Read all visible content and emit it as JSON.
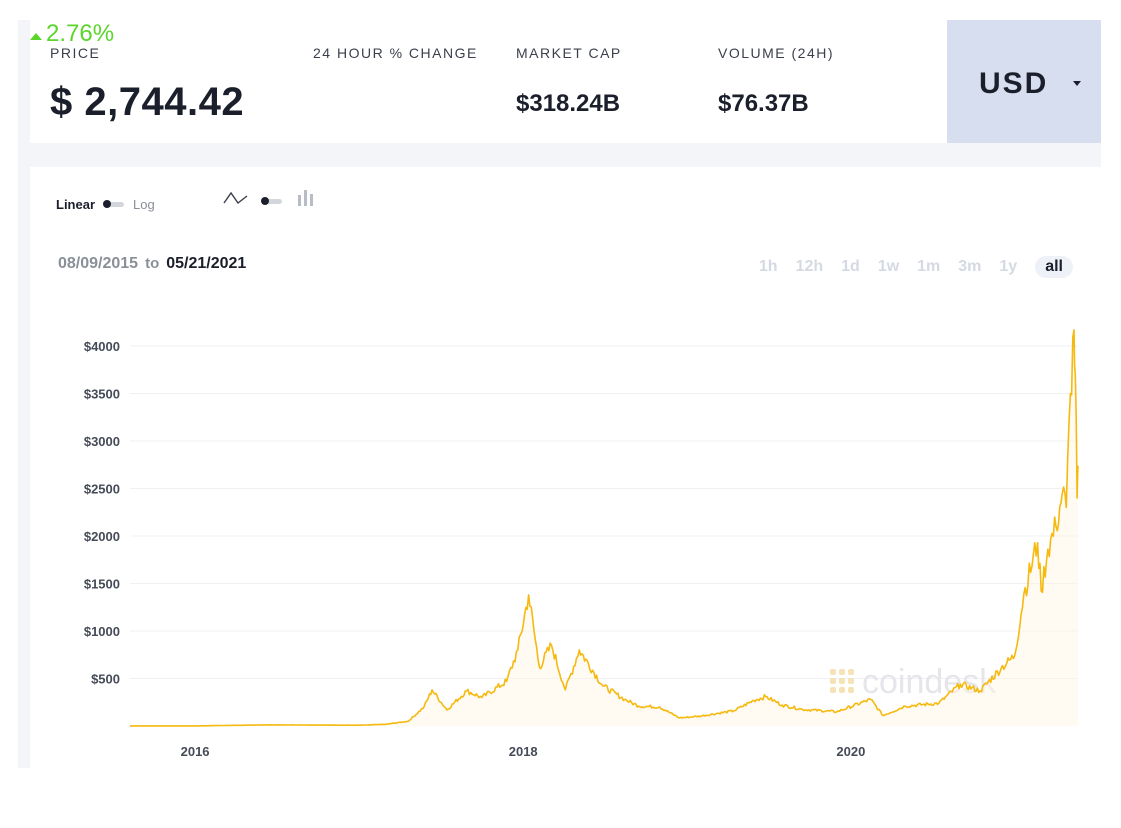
{
  "stats": {
    "price": {
      "label": "PRICE",
      "value": "$ 2,744.42"
    },
    "change": {
      "label": "24 HOUR % CHANGE",
      "value": "2.76%",
      "direction": "up"
    },
    "market_cap": {
      "label": "MARKET CAP",
      "value": "$318.24B"
    },
    "volume": {
      "label": "VOLUME (24H)",
      "value": "$76.37B"
    }
  },
  "currency": {
    "label": "USD",
    "icon": "caret-down-icon"
  },
  "scale_toggle": {
    "linear_label": "Linear",
    "log_label": "Log",
    "selected": "Linear"
  },
  "chart_type_toggle": {
    "line_icon": "line-chart-icon",
    "bar_icon": "candlestick-icon",
    "selected": "line"
  },
  "date_range": {
    "from": "08/09/2015",
    "to_word": "to",
    "to": "05/21/2021"
  },
  "periods": {
    "items": [
      "1h",
      "12h",
      "1d",
      "1w",
      "1m",
      "3m",
      "1y",
      "all"
    ],
    "active": "all"
  },
  "watermark": {
    "text": "coindesk"
  },
  "colors": {
    "line": "#f5b90f",
    "change_up": "#5ad62a",
    "currency_bg": "#d7deef",
    "text_dark": "#1b1f2b"
  },
  "chart_data": {
    "type": "line",
    "title": "",
    "xlabel": "",
    "ylabel": "",
    "x_ticks": [
      "2016",
      "2018",
      "2020"
    ],
    "y_ticks": [
      "$500",
      "$1000",
      "$1500",
      "$2000",
      "$2500",
      "$3000",
      "$3500",
      "$4000"
    ],
    "ylim": [
      0,
      4000
    ],
    "grid": "horizontal",
    "legend": "none",
    "series": [
      {
        "points": [
          [
            "2015-08-09",
            1
          ],
          [
            "2015-12-31",
            1
          ],
          [
            "2016-06-15",
            12
          ],
          [
            "2016-12-31",
            8
          ],
          [
            "2017-03-01",
            18
          ],
          [
            "2017-04-20",
            50
          ],
          [
            "2017-05-25",
            200
          ],
          [
            "2017-06-12",
            380
          ],
          [
            "2017-07-15",
            170
          ],
          [
            "2017-08-28",
            370
          ],
          [
            "2017-10-01",
            300
          ],
          [
            "2017-11-25",
            470
          ],
          [
            "2017-12-20",
            800
          ],
          [
            "2018-01-13",
            1380
          ],
          [
            "2018-02-06",
            620
          ],
          [
            "2018-03-05",
            850
          ],
          [
            "2018-04-05",
            380
          ],
          [
            "2018-05-06",
            800
          ],
          [
            "2018-06-28",
            420
          ],
          [
            "2018-08-15",
            280
          ],
          [
            "2018-09-15",
            210
          ],
          [
            "2018-11-01",
            200
          ],
          [
            "2018-12-15",
            85
          ],
          [
            "2019-02-01",
            105
          ],
          [
            "2019-04-15",
            160
          ],
          [
            "2019-05-30",
            270
          ],
          [
            "2019-06-25",
            310
          ],
          [
            "2019-08-01",
            220
          ],
          [
            "2019-09-15",
            175
          ],
          [
            "2019-12-01",
            150
          ],
          [
            "2020-02-14",
            280
          ],
          [
            "2020-03-13",
            110
          ],
          [
            "2020-05-01",
            210
          ],
          [
            "2020-07-15",
            240
          ],
          [
            "2020-09-01",
            440
          ],
          [
            "2020-10-15",
            370
          ],
          [
            "2020-12-01",
            610
          ],
          [
            "2020-12-31",
            740
          ],
          [
            "2021-01-20",
            1380
          ],
          [
            "2021-02-20",
            1930
          ],
          [
            "2021-02-28",
            1420
          ],
          [
            "2021-03-15",
            1860
          ],
          [
            "2021-04-02",
            2100
          ],
          [
            "2021-04-16",
            2450
          ],
          [
            "2021-04-25",
            2300
          ],
          [
            "2021-05-04",
            3500
          ],
          [
            "2021-05-12",
            4170
          ],
          [
            "2021-05-15",
            3700
          ],
          [
            "2021-05-19",
            2400
          ],
          [
            "2021-05-21",
            2740
          ]
        ]
      }
    ]
  }
}
